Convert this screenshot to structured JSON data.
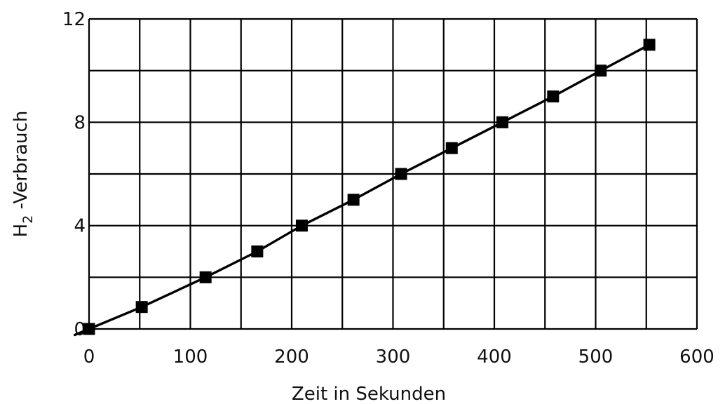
{
  "chart_data": {
    "type": "line",
    "title": "",
    "xlabel": "Zeit in Sekunden",
    "ylabel": {
      "main": "H",
      "subscript": "2",
      "rest": " -Verbrauch"
    },
    "xlim": [
      0,
      600
    ],
    "ylim": [
      0,
      12
    ],
    "xticks": [
      0,
      100,
      200,
      300,
      400,
      500,
      600
    ],
    "yticks": [
      0,
      4,
      8,
      12
    ],
    "x_grid_step": 50,
    "y_grid_step": 2,
    "grid": true,
    "marker": "square",
    "colors": {
      "line": "#000000",
      "grid": "#000000",
      "marker": "#000000"
    },
    "series": [
      {
        "x": [
          0,
          52,
          115,
          166,
          210,
          261,
          308,
          358,
          408,
          458,
          505,
          553
        ],
        "y": [
          0,
          0.85,
          2,
          3,
          4,
          5,
          6,
          7,
          8,
          9,
          10,
          11
        ]
      }
    ]
  }
}
